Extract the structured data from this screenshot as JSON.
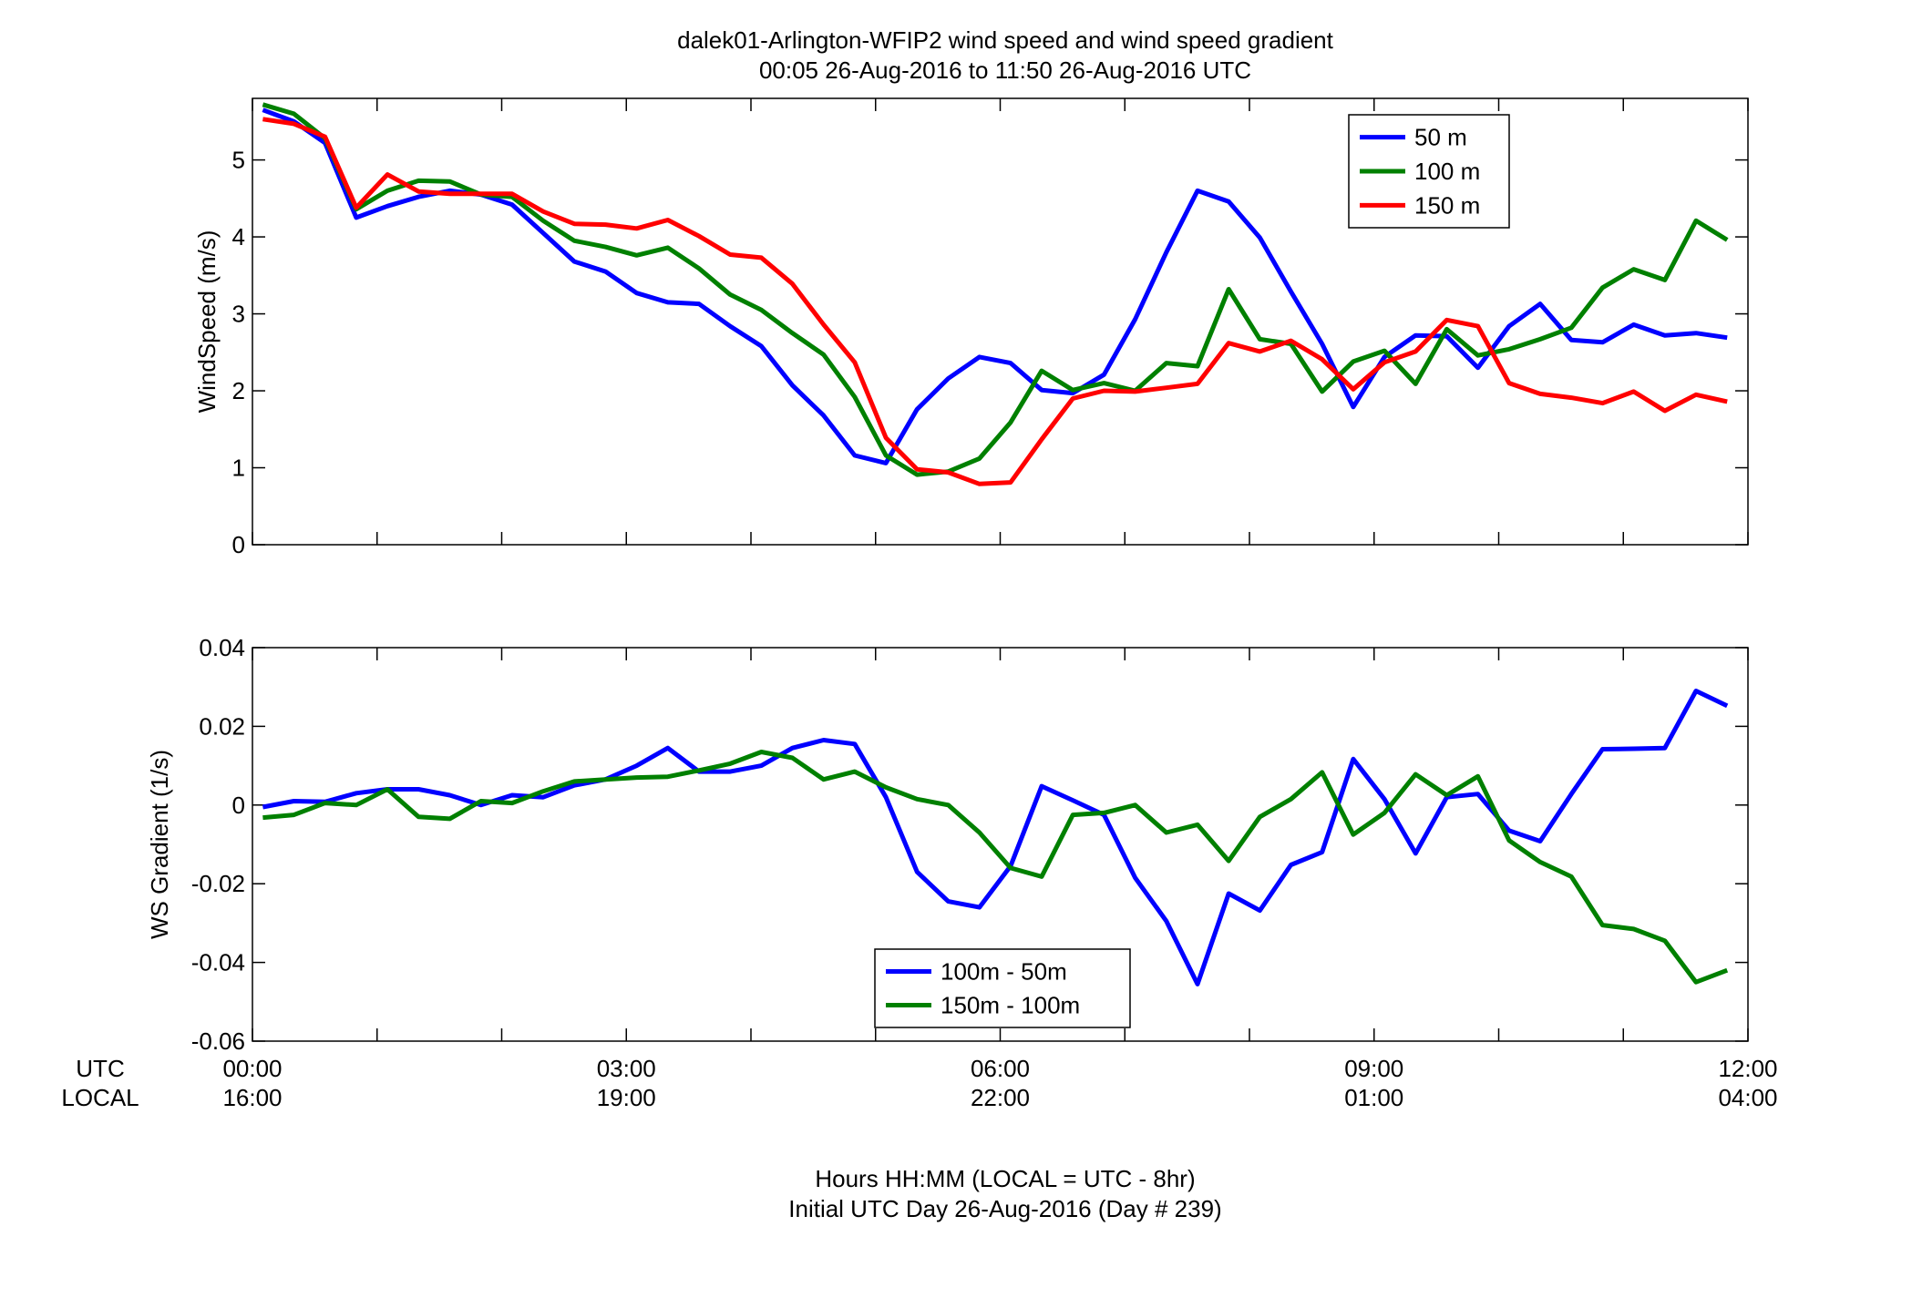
{
  "figure": {
    "title_line1": "dalek01-Arlington-WFIP2  wind speed and wind speed gradient",
    "title_line2": "00:05 26-Aug-2016 to 11:50 26-Aug-2016  UTC",
    "xlabel_line1": "Hours HH:MM  (LOCAL = UTC - 8hr)",
    "xlabel_line2": "Initial UTC Day 26-Aug-2016 (Day # 239)",
    "row_label_utc": "UTC",
    "row_label_local": "LOCAL",
    "x_ticks_utc": [
      "00:00",
      "03:00",
      "06:00",
      "09:00",
      "12:00"
    ],
    "x_ticks_local": [
      "16:00",
      "19:00",
      "22:00",
      "01:00",
      "04:00"
    ],
    "x_tick_hours": [
      0,
      3,
      6,
      9,
      12
    ]
  },
  "chart_data": [
    {
      "type": "line",
      "ylabel": "WindSpeed (m/s)",
      "xlim": [
        0,
        12
      ],
      "ylim": [
        0,
        5.8
      ],
      "y_ticks": [
        0,
        1,
        2,
        3,
        4,
        5
      ],
      "y_tick_labels": [
        "0",
        "1",
        "2",
        "3",
        "4",
        "5"
      ],
      "legend_position": "top-right",
      "grid": false,
      "x": [
        0.083,
        0.333,
        0.583,
        0.833,
        1.083,
        1.333,
        1.583,
        1.833,
        2.083,
        2.333,
        2.583,
        2.833,
        3.083,
        3.333,
        3.583,
        3.833,
        4.083,
        4.333,
        4.583,
        4.833,
        5.083,
        5.333,
        5.583,
        5.833,
        6.083,
        6.333,
        6.583,
        6.833,
        7.083,
        7.333,
        7.583,
        7.833,
        8.083,
        8.333,
        8.583,
        8.833,
        9.083,
        9.333,
        9.583,
        9.833,
        10.083,
        10.333,
        10.583,
        10.833,
        11.083,
        11.333,
        11.583,
        11.833
      ],
      "series": [
        {
          "name": "50 m",
          "color": "#0000ff",
          "values": [
            5.65,
            5.5,
            5.22,
            4.25,
            4.4,
            4.52,
            4.6,
            4.55,
            4.42,
            4.05,
            3.68,
            3.55,
            3.27,
            3.15,
            3.13,
            2.84,
            2.58,
            2.07,
            1.68,
            1.16,
            1.06,
            1.76,
            2.16,
            2.44,
            2.36,
            2.01,
            1.97,
            2.21,
            2.93,
            3.8,
            4.6,
            4.46,
            3.99,
            3.29,
            2.61,
            1.79,
            2.44,
            2.72,
            2.71,
            2.3,
            2.84,
            3.13,
            2.66,
            2.63,
            2.86,
            2.72,
            2.75,
            2.69
          ]
        },
        {
          "name": "100 m",
          "color": "#008000",
          "values": [
            5.72,
            5.6,
            5.28,
            4.36,
            4.6,
            4.73,
            4.72,
            4.55,
            4.52,
            4.21,
            3.95,
            3.87,
            3.76,
            3.86,
            3.59,
            3.25,
            3.05,
            2.75,
            2.47,
            1.92,
            1.16,
            0.91,
            0.95,
            1.12,
            1.59,
            2.26,
            2.01,
            2.1,
            2.0,
            2.36,
            2.32,
            3.32,
            2.67,
            2.61,
            1.99,
            2.38,
            2.52,
            2.09,
            2.8,
            2.46,
            2.54,
            2.67,
            2.82,
            3.34,
            3.58,
            3.44,
            4.21,
            3.96
          ]
        },
        {
          "name": "150 m",
          "color": "#ff0000",
          "values": [
            5.53,
            5.47,
            5.3,
            4.38,
            4.81,
            4.59,
            4.56,
            4.56,
            4.56,
            4.33,
            4.17,
            4.16,
            4.11,
            4.22,
            4.01,
            3.77,
            3.73,
            3.39,
            2.86,
            2.37,
            1.39,
            0.98,
            0.94,
            0.79,
            0.81,
            1.37,
            1.9,
            2.0,
            1.99,
            2.04,
            2.09,
            2.62,
            2.51,
            2.65,
            2.41,
            2.02,
            2.37,
            2.51,
            2.92,
            2.84,
            2.1,
            1.96,
            1.91,
            1.84,
            1.99,
            1.74,
            1.95,
            1.86
          ]
        }
      ]
    },
    {
      "type": "line",
      "ylabel": "WS Gradient (1/s)",
      "xlim": [
        0,
        12
      ],
      "ylim": [
        -0.06,
        0.04
      ],
      "y_ticks": [
        -0.06,
        -0.04,
        -0.02,
        0,
        0.02,
        0.04
      ],
      "y_tick_labels": [
        "-0.06",
        "-0.04",
        "-0.02",
        "0",
        "0.02",
        "0.04"
      ],
      "legend_position": "bottom-center",
      "grid": false,
      "x": [
        0.083,
        0.333,
        0.583,
        0.833,
        1.083,
        1.333,
        1.583,
        1.833,
        2.083,
        2.333,
        2.583,
        2.833,
        3.083,
        3.333,
        3.583,
        3.833,
        4.083,
        4.333,
        4.583,
        4.833,
        5.083,
        5.333,
        5.583,
        5.833,
        6.083,
        6.333,
        6.583,
        6.833,
        7.083,
        7.333,
        7.583,
        7.833,
        8.083,
        8.333,
        8.583,
        8.833,
        9.083,
        9.333,
        9.583,
        9.833,
        10.083,
        10.333,
        10.583,
        10.833,
        11.083,
        11.333,
        11.583,
        11.833
      ],
      "series": [
        {
          "name": "100m - 50m",
          "color": "#0000ff",
          "values": [
            -0.0005,
            0.001,
            0.0008,
            0.003,
            0.004,
            0.004,
            0.0025,
            0.0,
            0.0025,
            0.002,
            0.005,
            0.0065,
            0.01,
            0.0145,
            0.0085,
            0.0085,
            0.01,
            0.0145,
            0.0165,
            0.0155,
            0.002,
            -0.017,
            -0.0245,
            -0.026,
            -0.0155,
            0.0048,
            0.0012,
            -0.0025,
            -0.0185,
            -0.0295,
            -0.0455,
            -0.0225,
            -0.0268,
            -0.0152,
            -0.012,
            0.0117,
            0.0015,
            -0.0123,
            0.002,
            0.0028,
            -0.0065,
            -0.0092,
            0.0028,
            0.0142,
            0.0143,
            0.0145,
            0.029,
            0.0252
          ]
        },
        {
          "name": "150m - 100m",
          "color": "#008000",
          "values": [
            -0.0032,
            -0.0025,
            0.0005,
            0.0,
            0.004,
            -0.003,
            -0.0035,
            0.001,
            0.0005,
            0.0035,
            0.006,
            0.0065,
            0.007,
            0.0072,
            0.0088,
            0.0105,
            0.0135,
            0.012,
            0.0065,
            0.0085,
            0.0045,
            0.0015,
            0.0,
            -0.007,
            -0.016,
            -0.0182,
            -0.0025,
            -0.002,
            0.0,
            -0.007,
            -0.005,
            -0.0142,
            -0.003,
            0.0015,
            0.0083,
            -0.0075,
            -0.002,
            0.0078,
            0.0025,
            0.0073,
            -0.009,
            -0.0145,
            -0.0182,
            -0.0305,
            -0.0315,
            -0.0345,
            -0.045,
            -0.042
          ]
        }
      ]
    }
  ]
}
